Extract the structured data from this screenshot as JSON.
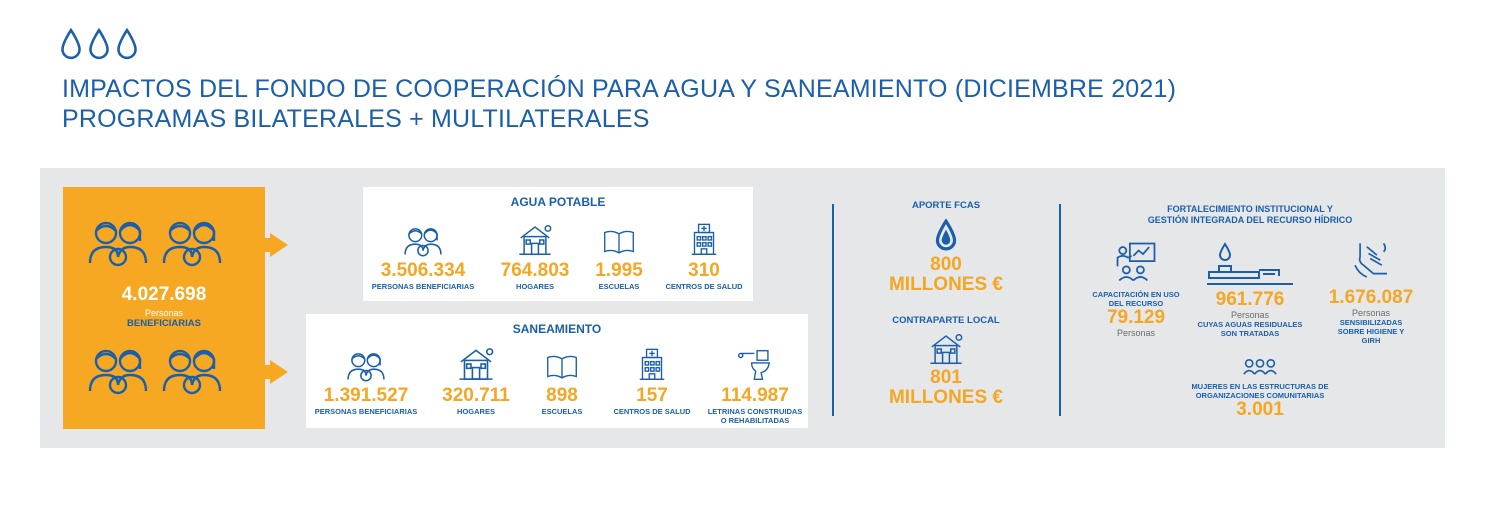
{
  "header": {
    "title_line1": "IMPACTOS DEL FONDO DE COOPERACIÓN PARA AGUA Y SANEAMIENTO (DICIEMBRE 2021)",
    "title_line2": "PROGRAMAS BILATERALES + MULTILATERALES"
  },
  "total": {
    "value": "4.027.698",
    "sub": "Personas",
    "label": "BENEFICIARIAS"
  },
  "agua": {
    "title": "AGUA POTABLE",
    "stats": [
      {
        "value": "3.506.334",
        "label": "PERSONAS BENEFICIARIAS",
        "icon": "people-icon"
      },
      {
        "value": "764.803",
        "label": "HOGARES",
        "icon": "house-icon"
      },
      {
        "value": "1.995",
        "label": "ESCUELAS",
        "icon": "book-icon"
      },
      {
        "value": "310",
        "label": "CENTROS DE SALUD",
        "icon": "hospital-icon"
      }
    ]
  },
  "saneamiento": {
    "title": "SANEAMIENTO",
    "stats": [
      {
        "value": "1.391.527",
        "label": "PERSONAS BENEFICIARIAS",
        "icon": "people-icon"
      },
      {
        "value": "320.711",
        "label": "HOGARES",
        "icon": "house-icon"
      },
      {
        "value": "898",
        "label": "ESCUELAS",
        "icon": "book-icon"
      },
      {
        "value": "157",
        "label": "CENTROS DE SALUD",
        "icon": "hospital-icon"
      },
      {
        "value": "114.987",
        "label_line1": "LETRINAS CONSTRUIDAS",
        "label_line2": "O REHABILITADAS",
        "icon": "toilet-icon"
      }
    ]
  },
  "aporte": {
    "title": "APORTE FCAS",
    "value_line1": "800",
    "value_line2": "MILLONES €",
    "contra_title": "CONTRAPARTE LOCAL",
    "contra_line1": "801",
    "contra_line2": "MILLONES €"
  },
  "fortalecimiento": {
    "title_line1": "FORTALECIMIENTO INSTITUCIONAL Y",
    "title_line2": "GESTIÓN INTEGRADA DEL RECURSO HÍDRICO",
    "capacitacion": {
      "label_line1": "CAPACITACIÓN EN USO",
      "label_line2": "DEL RECURSO",
      "value": "79.129",
      "sub": "Personas"
    },
    "aguas": {
      "value": "961.776",
      "sub": "Personas",
      "label_line1": "CUYAS AGUAS RESIDUALES",
      "label_line2": "SON TRATADAS"
    },
    "sensibilizadas": {
      "value": "1.676.087",
      "sub": "Personas",
      "label_line1": "SENSIBILIZADAS",
      "label_line2": "SOBRE HIGIENE Y",
      "label_line3": "GIRH"
    },
    "mujeres": {
      "label_line1": "MUJERES EN LAS ESTRUCTURAS DE",
      "label_line2": "ORGANIZACIONES COMUNITARIAS",
      "value": "3.001"
    }
  },
  "colors": {
    "blue": "#1b5faa",
    "orange": "#f5a623",
    "panel": "#e6e7e8"
  }
}
